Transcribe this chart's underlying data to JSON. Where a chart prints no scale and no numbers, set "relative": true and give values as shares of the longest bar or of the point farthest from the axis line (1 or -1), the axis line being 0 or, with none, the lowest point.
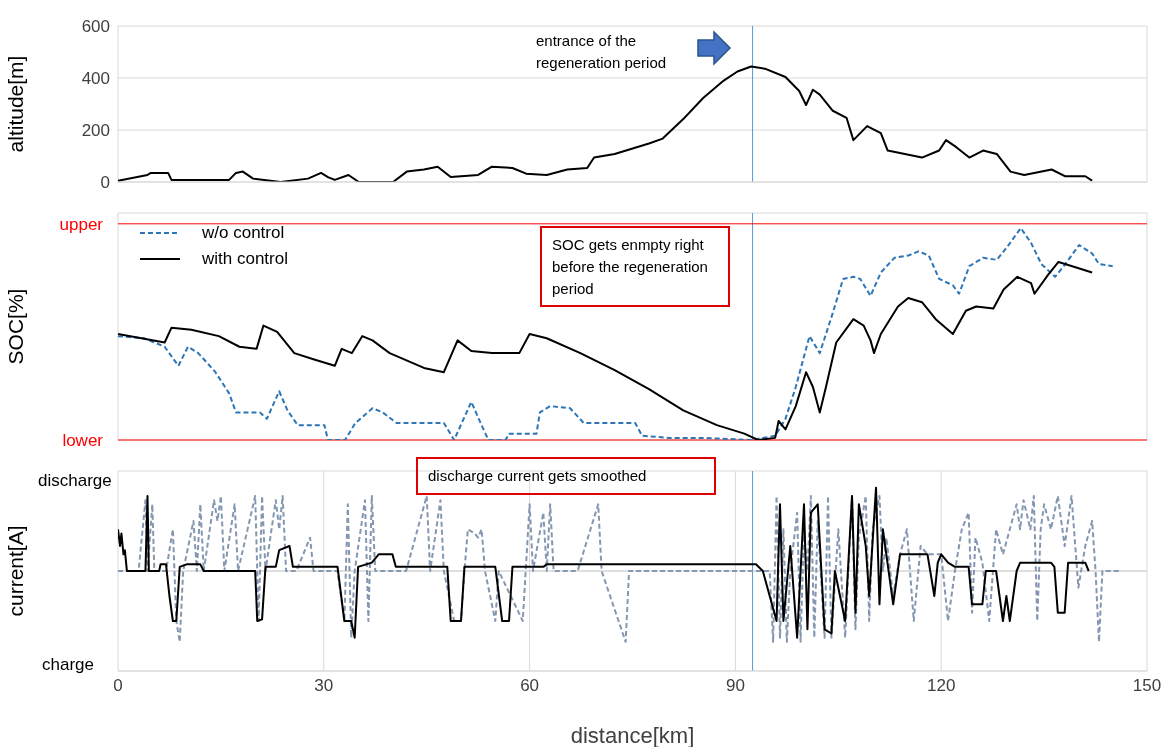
{
  "chart_data": [
    {
      "type": "line",
      "ylabel": "altitude[m]",
      "xlim": [
        0,
        150
      ],
      "xticks": [
        0,
        30,
        60,
        90,
        120,
        150
      ],
      "ylim": [
        0,
        600
      ],
      "yticks": [
        0,
        200,
        400,
        600
      ],
      "grid": true,
      "tick_labels": "y",
      "marker": "none",
      "line_style": "solid",
      "annotations": [
        "entrance of the regeneration period"
      ],
      "ref_lines": [
        {
          "axis": "x",
          "value": 92.5,
          "color": "#5b9bd5"
        }
      ],
      "series": [
        {
          "color": "#000000",
          "x": [
            0,
            4.3,
            4.8,
            7.3,
            7.8,
            16.2,
            17.2,
            18.2,
            19.7,
            23.7,
            27.7,
            29.6,
            30.6,
            31.6,
            33.6,
            35.1,
            40.1,
            42.1,
            44.6,
            46.6,
            48.5,
            52.5,
            54.5,
            57.5,
            59.5,
            62.5,
            65.5,
            68.4,
            69.4,
            72.4,
            77.4,
            79.4,
            82.4,
            85.3,
            88.3,
            90.3,
            92.3,
            94.3,
            97.3,
            99.3,
            100.3,
            101.3,
            102.3,
            104.2,
            106.2,
            107.2,
            109.2,
            111.2,
            112.2,
            117.2,
            119.7,
            120.7,
            122.2,
            124.1,
            126.1,
            128.1,
            130.1,
            132.1,
            136.1,
            138.1,
            141,
            142
          ],
          "values": [
            5,
            27,
            35,
            35,
            8,
            8,
            35,
            40,
            13,
            0,
            13,
            35,
            19,
            8,
            27,
            0,
            0,
            40,
            48,
            59,
            19,
            27,
            59,
            54,
            32,
            27,
            48,
            54,
            94,
            108,
            148,
            167,
            242,
            323,
            390,
            425,
            444,
            436,
            404,
            350,
            296,
            355,
            336,
            274,
            247,
            161,
            215,
            188,
            121,
            94,
            121,
            161,
            134,
            94,
            121,
            108,
            40,
            27,
            48,
            22,
            22,
            5
          ]
        }
      ]
    },
    {
      "type": "line",
      "ylabel": "SOC[%]",
      "xlim": [
        0,
        150
      ],
      "xticks": [
        0,
        30,
        60,
        90,
        120,
        150
      ],
      "relative": true,
      "grid": true,
      "tick_labels": false,
      "legend": "top left",
      "marker": "none",
      "annotations": [
        "SOC gets enmpty right before the regeneration period"
      ],
      "ref_lines": [
        {
          "axis": "x",
          "value": 92.5,
          "color": "#5b9bd5"
        },
        {
          "axis": "y",
          "value": 1.02,
          "label": "upper",
          "color": "#ff0000"
        },
        {
          "axis": "y",
          "value": 0,
          "label": "lower",
          "color": "#ff0000"
        }
      ],
      "series": [
        {
          "name": "w/o control",
          "color": "#2e75b6",
          "line_style": "dashed",
          "x": [
            0,
            3.8,
            6.8,
            8.8,
            10.2,
            11.7,
            14.2,
            16.2,
            17.2,
            20.7,
            21.7,
            23.5,
            24.7,
            26.2,
            30.1,
            30.6,
            33.1,
            34.6,
            37.1,
            38.6,
            40.6,
            47.5,
            49.0,
            51.5,
            53.0,
            54.0,
            56.5,
            57.0,
            61.0,
            61.5,
            63.0,
            65.9,
            67.9,
            75.4,
            76.4,
            80.4,
            85.3,
            92.3,
            95.8,
            97.3,
            98.8,
            100.8,
            102.3,
            103.2,
            104.2,
            105.7,
            107.2,
            108.2,
            109.7,
            111.2,
            113.2,
            115.2,
            116.7,
            118.2,
            119.7,
            121.7,
            122.6,
            124.1,
            126.1,
            128.1,
            129.6,
            131.6,
            133.1,
            134.6,
            136.6,
            138.1,
            140.1,
            142.0,
            143.0,
            145.0
          ],
          "values": [
            0.49,
            0.48,
            0.44,
            0.35,
            0.44,
            0.41,
            0.32,
            0.22,
            0.13,
            0.13,
            0.1,
            0.23,
            0.14,
            0.07,
            0.07,
            0,
            0,
            0.08,
            0.15,
            0.13,
            0.08,
            0.08,
            0,
            0.18,
            0.07,
            0,
            0,
            0.03,
            0.03,
            0.13,
            0.16,
            0.15,
            0.08,
            0.08,
            0.02,
            0.01,
            0.01,
            0,
            0.02,
            0.1,
            0.25,
            0.49,
            0.41,
            0.5,
            0.6,
            0.76,
            0.77,
            0.76,
            0.68,
            0.79,
            0.86,
            0.87,
            0.89,
            0.87,
            0.76,
            0.73,
            0.69,
            0.82,
            0.86,
            0.85,
            0.91,
            1,
            0.93,
            0.83,
            0.77,
            0.83,
            0.92,
            0.88,
            0.83,
            0.82
          ]
        },
        {
          "name": "with control",
          "color": "#000000",
          "line_style": "solid",
          "x": [
            0,
            6.8,
            7.8,
            10.7,
            14.7,
            17.7,
            20.2,
            21.2,
            23.2,
            25.7,
            28.6,
            31.6,
            32.6,
            34.1,
            35.6,
            37.1,
            39.6,
            44.6,
            47.5,
            49.5,
            51.5,
            54.5,
            58.5,
            60.0,
            62.5,
            67.4,
            72.4,
            77.4,
            82.4,
            87.3,
            91.3,
            93.3,
            95.8,
            96.3,
            97.3,
            98.8,
            100.3,
            101.3,
            102.3,
            103.2,
            104.7,
            107.2,
            108.7,
            109.7,
            110.2,
            111.2,
            113.7,
            115.2,
            117.2,
            119.2,
            121.7,
            123.6,
            125.1,
            127.6,
            129.1,
            131.1,
            133.1,
            133.6,
            135.6,
            137.1,
            139.1,
            142.0
          ],
          "values": [
            0.5,
            0.46,
            0.53,
            0.52,
            0.49,
            0.44,
            0.43,
            0.54,
            0.51,
            0.41,
            0.38,
            0.35,
            0.43,
            0.41,
            0.49,
            0.47,
            0.41,
            0.34,
            0.32,
            0.47,
            0.42,
            0.41,
            0.41,
            0.5,
            0.48,
            0.41,
            0.33,
            0.24,
            0.14,
            0.07,
            0.03,
            0,
            0.01,
            0.09,
            0.05,
            0.16,
            0.32,
            0.25,
            0.13,
            0.25,
            0.46,
            0.57,
            0.54,
            0.47,
            0.41,
            0.5,
            0.63,
            0.67,
            0.65,
            0.57,
            0.5,
            0.61,
            0.63,
            0.62,
            0.71,
            0.77,
            0.74,
            0.69,
            0.78,
            0.84,
            0.82,
            0.79
          ]
        }
      ]
    },
    {
      "type": "line",
      "ylabel": "current[A]",
      "xlabel": "distance[km]",
      "xlim": [
        0,
        150
      ],
      "xticks": [
        0,
        30,
        60,
        90,
        120,
        150
      ],
      "relative": true,
      "grid": true,
      "tick_labels": "x",
      "marker": "none",
      "annotations": [
        "discharge current gets smoothed",
        "discharge",
        "charge"
      ],
      "ref_lines": [
        {
          "axis": "x",
          "value": 92.5,
          "color": "#5b9bd5"
        }
      ],
      "series": [
        {
          "color": "#8497b0",
          "line_style": "dashed",
          "x": [
            0,
            3,
            4,
            4.3,
            5,
            5.3,
            7,
            8,
            8.5,
            9,
            9.5,
            11,
            11.5,
            12,
            12.5,
            14,
            14.5,
            15,
            15.5,
            17,
            17.5,
            20,
            20.5,
            21,
            21.5,
            23,
            23.5,
            24,
            24.5,
            26,
            28,
            28.5,
            32,
            33,
            33.5,
            34,
            34.5,
            36,
            36.5,
            37,
            37.5,
            42,
            45,
            45.5,
            47,
            47.5,
            49,
            50,
            50.5,
            51,
            52,
            52.5,
            53,
            53.5,
            55,
            55.5,
            59,
            60,
            60.5,
            62,
            62.5,
            63,
            63.5,
            67,
            70,
            70.5,
            74,
            74.5,
            80,
            90,
            95,
            95.5,
            96,
            96.5,
            97,
            97.5,
            98,
            99,
            99.5,
            100,
            100.5,
            101,
            101.5,
            102,
            103,
            103.5,
            104,
            105,
            106,
            107,
            107.5,
            108,
            109,
            109.5,
            110,
            111,
            111.5,
            112,
            113,
            114,
            115,
            116,
            117,
            118,
            119,
            120,
            121,
            122,
            123,
            124,
            124.5,
            125,
            126,
            127,
            128,
            129,
            130,
            131,
            131.5,
            132,
            133,
            133.5,
            134,
            134.5,
            135,
            136,
            137,
            138,
            139,
            140,
            141,
            142,
            142.5,
            143,
            143.5,
            146
          ],
          "values": [
            0,
            0,
            0.85,
            0,
            0.8,
            0,
            0,
            0.5,
            -0.6,
            -0.85,
            0,
            0.6,
            0,
            0.8,
            0,
            0.85,
            0.6,
            0.9,
            0,
            0.8,
            0,
            0.9,
            -0.6,
            0.9,
            0,
            0.85,
            0.5,
            0.9,
            0,
            0,
            0.4,
            0,
            0,
            -0.6,
            0.8,
            -0.8,
            0,
            0.85,
            -0.6,
            0.9,
            0,
            0,
            0.9,
            0,
            0.85,
            0,
            -0.6,
            -0.6,
            0,
            0.5,
            0.45,
            0.4,
            0.5,
            0,
            -0.6,
            0,
            -0.6,
            0.8,
            0,
            0.7,
            0,
            0.8,
            0,
            0,
            0.8,
            0,
            -0.85,
            0,
            0,
            0,
            0,
            -0.85,
            0.9,
            -0.8,
            0.5,
            -0.85,
            0,
            0.7,
            -0.85,
            0.5,
            0,
            0.9,
            -0.8,
            0.6,
            -0.8,
            0.9,
            -0.8,
            0.5,
            -0.8,
            0.9,
            -0.7,
            0.4,
            0.9,
            -0.6,
            0.5,
            0.9,
            0,
            0.4,
            -0.3,
            0.2,
            0.5,
            -0.6,
            0.3,
            0.2,
            0.2,
            0.2,
            -0.6,
            0,
            0.5,
            0.7,
            -0.5,
            0.4,
            0.1,
            -0.6,
            0.5,
            0.2,
            0.5,
            0.8,
            0.5,
            0.85,
            0.5,
            0.9,
            -0.6,
            0.5,
            0.8,
            0.5,
            0.9,
            0.3,
            0.9,
            -0.2,
            0.3,
            0.6,
            0,
            -0.85,
            0,
            0
          ]
        },
        {
          "color": "#000000",
          "line_style": "solid",
          "x": [
            0,
            0.3,
            0.5,
            0.8,
            1,
            1.3,
            4,
            4.3,
            4.5,
            6,
            6.2,
            7,
            7.5,
            8,
            8.5,
            9,
            10,
            12,
            12.5,
            20,
            20.3,
            21,
            21.5,
            23,
            23.5,
            25,
            25.5,
            32,
            33,
            34,
            34.5,
            35,
            37,
            38,
            40,
            40.5,
            48,
            48.5,
            50,
            50.5,
            55,
            56,
            57,
            57.5,
            62,
            62.5,
            90,
            93,
            94,
            96,
            96.5,
            97,
            98,
            99,
            100,
            100.5,
            101,
            102,
            103,
            104,
            104.5,
            106,
            107,
            107.5,
            108,
            109,
            109.5,
            110.5,
            111,
            111.5,
            112,
            113,
            114,
            115,
            116,
            117,
            118,
            119,
            119.5,
            120,
            121,
            122,
            124,
            124.5,
            126,
            126.5,
            128,
            129,
            129.5,
            130,
            131,
            131.5,
            136,
            136.5,
            137,
            138,
            138.5,
            141,
            141.5
          ],
          "values": [
            0.5,
            0.3,
            0.45,
            0.2,
            0.25,
            0,
            0,
            0.9,
            0,
            0,
            0.08,
            0.08,
            -0.3,
            -0.6,
            -0.6,
            0.05,
            0.08,
            0.08,
            0,
            0,
            -0.6,
            -0.58,
            0.05,
            0.05,
            0.25,
            0.3,
            0.05,
            0.05,
            -0.6,
            -0.6,
            -0.8,
            0.05,
            0.1,
            0.2,
            0.2,
            0.05,
            0.05,
            -0.6,
            -0.6,
            0.05,
            0.05,
            -0.6,
            -0.6,
            0.05,
            0.05,
            0.08,
            0.08,
            0.08,
            0,
            -0.6,
            0.8,
            -0.6,
            0.3,
            -0.8,
            0.8,
            -0.7,
            0.7,
            0.8,
            -0.7,
            -0.75,
            0,
            -0.6,
            0.9,
            -0.5,
            0.8,
            0.3,
            -0.3,
            1,
            -0.4,
            0.5,
            0.2,
            -0.4,
            0.2,
            0.2,
            0.2,
            0.2,
            0.2,
            -0.3,
            0.1,
            0.2,
            0.1,
            0.05,
            0.05,
            -0.4,
            -0.4,
            0,
            0,
            -0.6,
            -0.3,
            -0.6,
            0,
            0.1,
            0.1,
            0.05,
            -0.5,
            -0.5,
            0.1,
            0.1,
            0
          ]
        }
      ]
    }
  ]
}
